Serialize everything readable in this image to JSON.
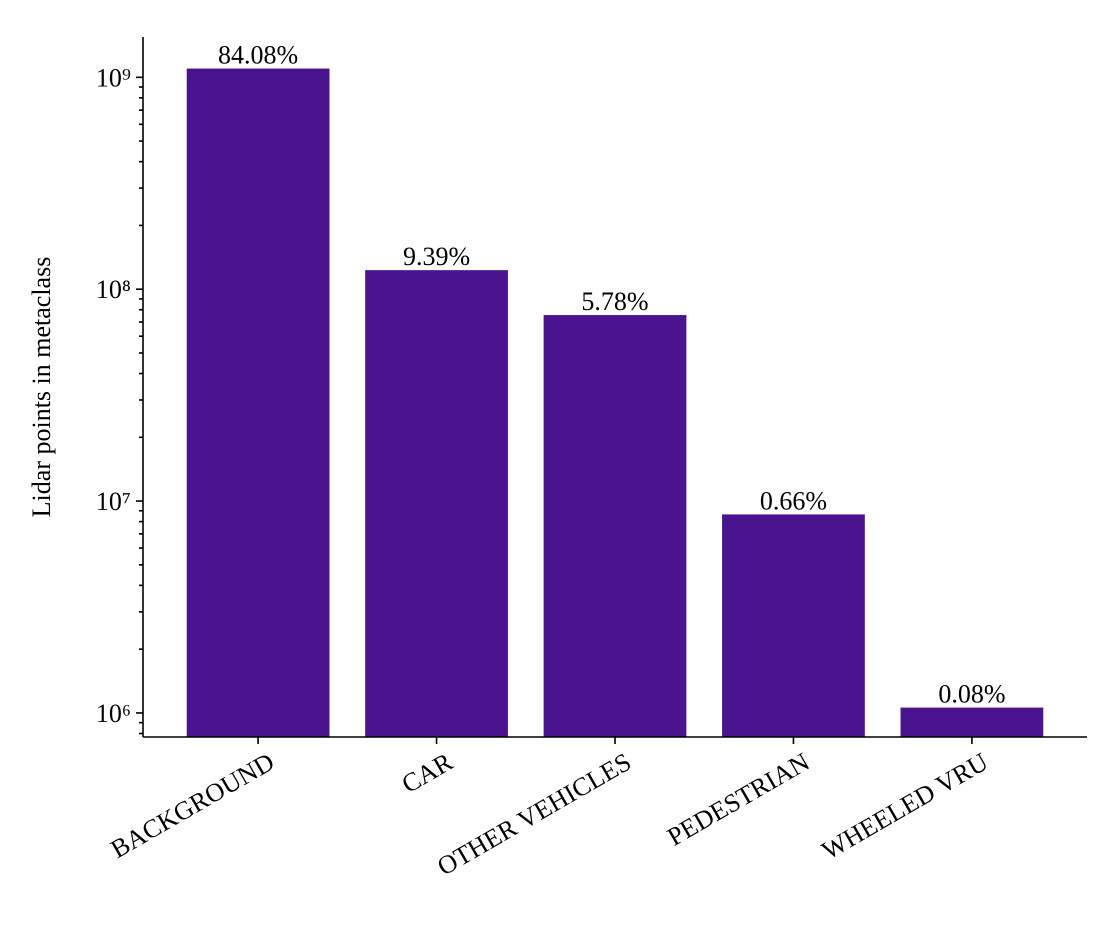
{
  "chart_data": {
    "type": "bar",
    "ylabel": "Lidar points in metaclass",
    "categories": [
      "BACKGROUND",
      "CAR",
      "OTHER VEHICLES",
      "PEDESTRIAN",
      "WHEELED VRU"
    ],
    "values": [
      1100000000,
      123000000,
      75500000,
      8650000,
      1060000
    ],
    "annotations": [
      "84.08%",
      "9.39%",
      "5.78%",
      "0.66%",
      "0.08%"
    ],
    "color": "#4b148f",
    "ylog": true,
    "ylim": [
      770000,
      1550000000
    ],
    "yticks": [
      {
        "value": 1000000,
        "label": "10⁶"
      },
      {
        "value": 10000000,
        "label": "10⁷"
      },
      {
        "value": 100000000,
        "label": "10⁸"
      },
      {
        "value": 1000000000,
        "label": "10⁹"
      }
    ],
    "minor_yticks": [
      800000,
      900000,
      2000000,
      3000000,
      4000000,
      5000000,
      6000000,
      7000000,
      8000000,
      9000000,
      20000000,
      30000000,
      40000000,
      50000000,
      60000000,
      70000000,
      80000000,
      90000000,
      200000000,
      300000000,
      400000000,
      500000000,
      600000000,
      700000000,
      800000000,
      900000000
    ],
    "grid": false
  }
}
